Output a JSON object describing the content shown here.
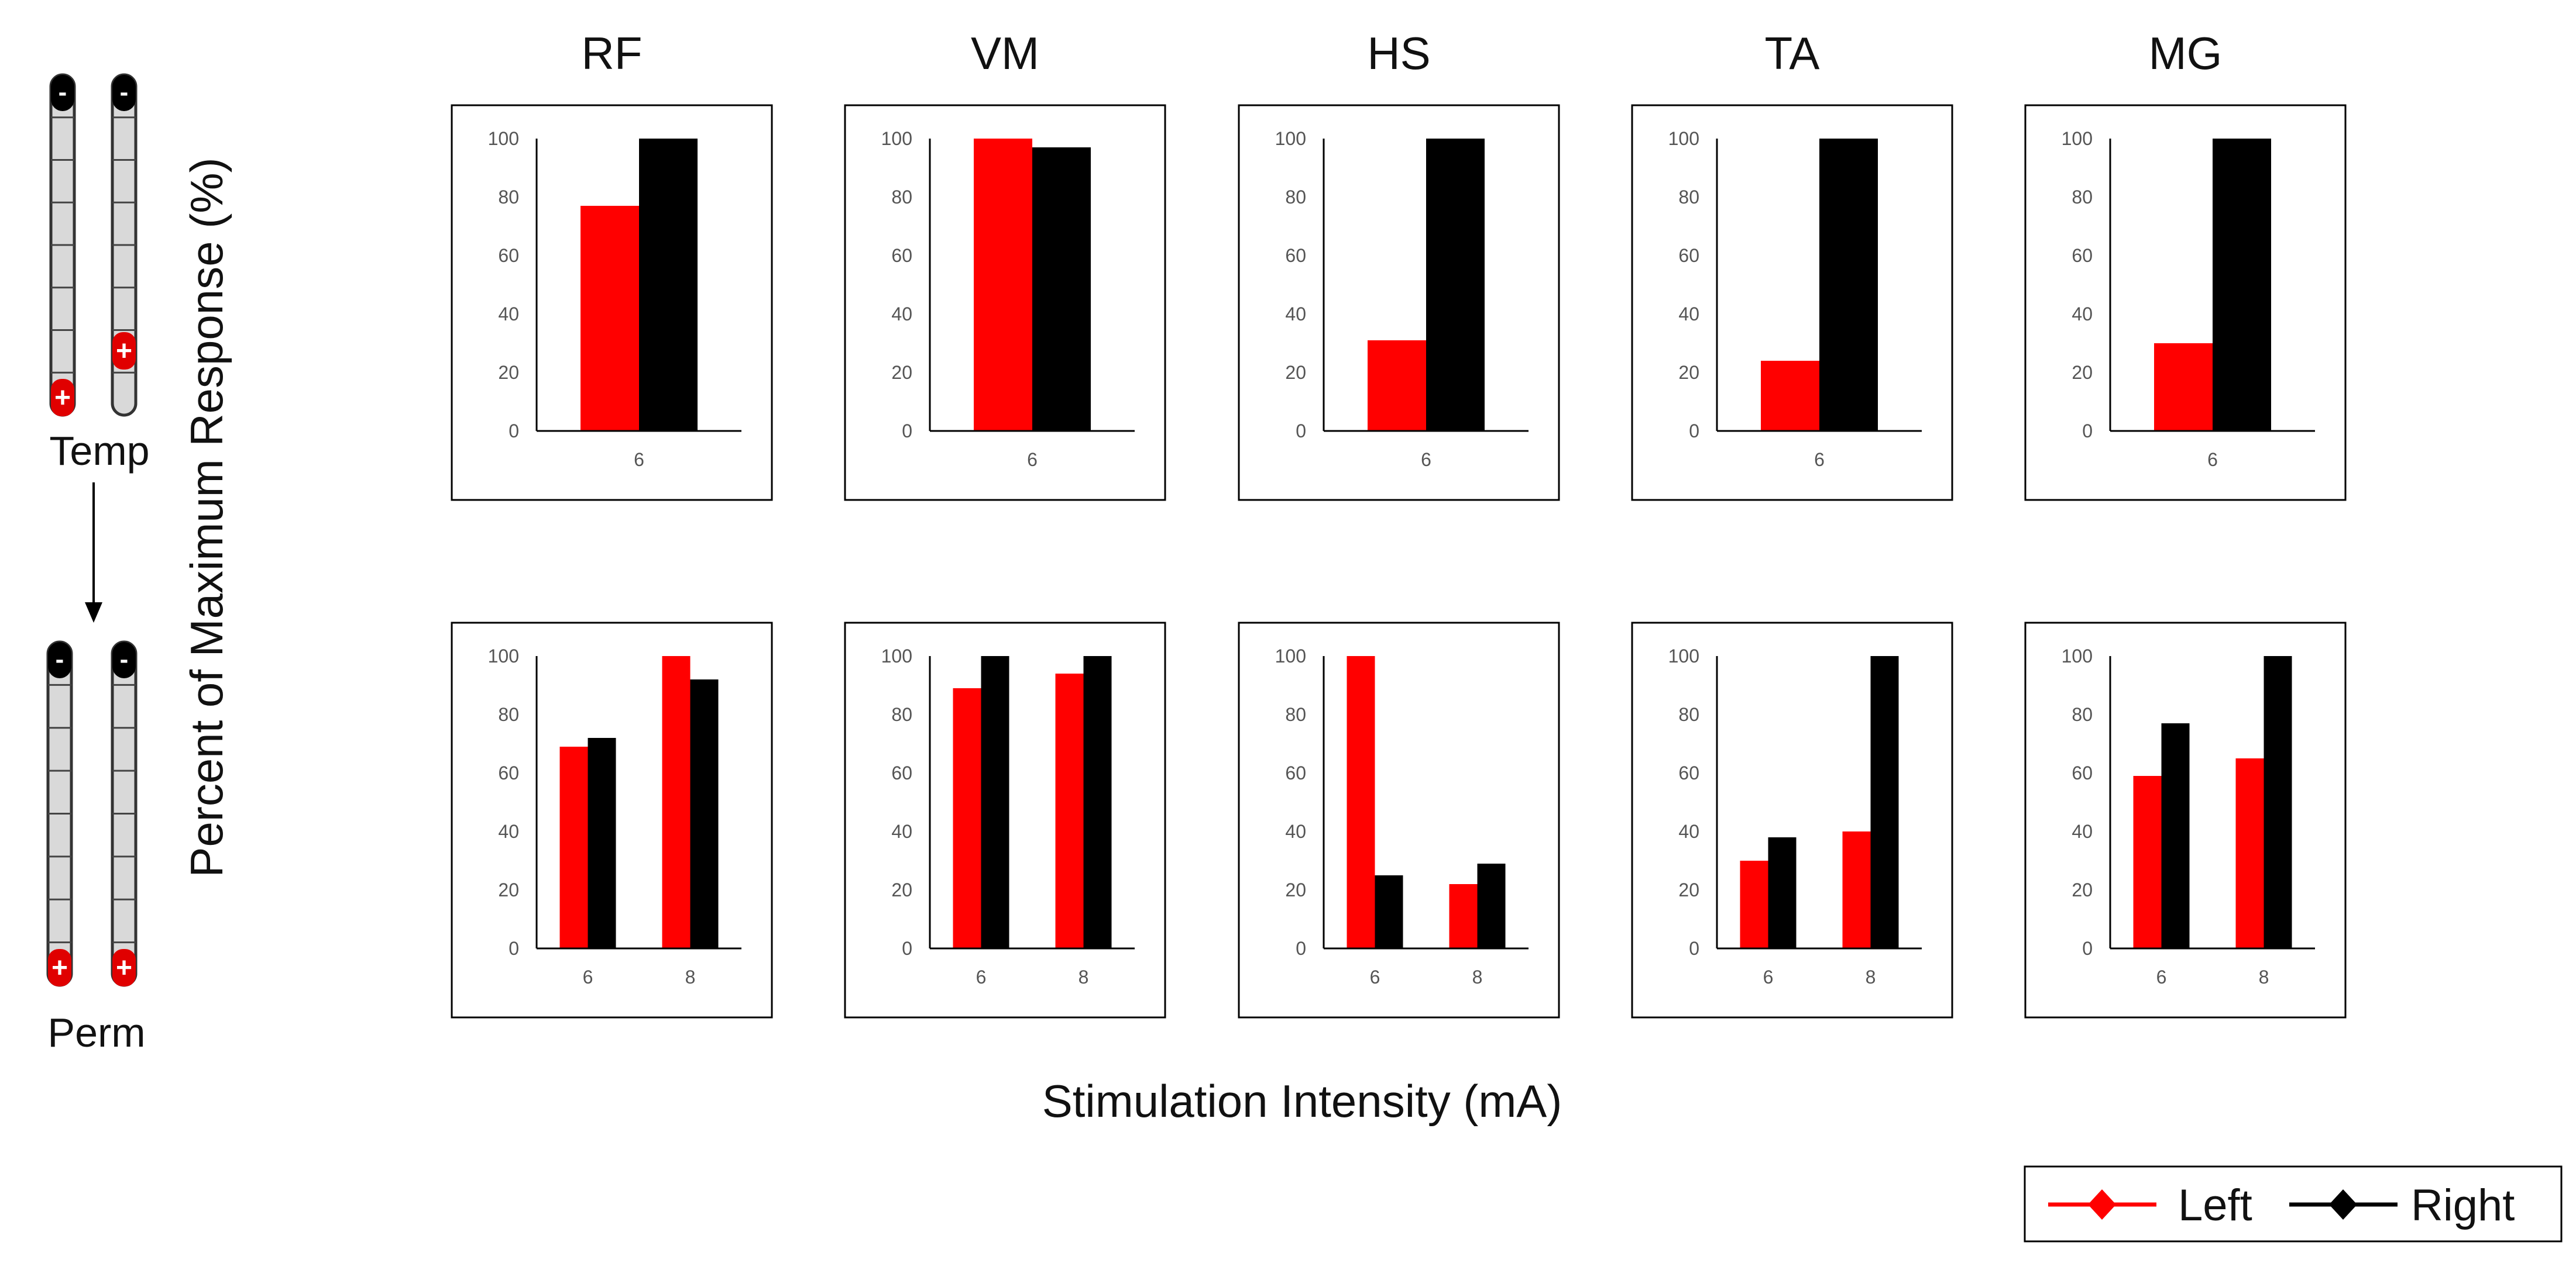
{
  "figure": {
    "ylabel": "Percent of Maximum Response (%)",
    "xlabel": "Stimulation Intensity (mA)",
    "muscles": [
      "RF",
      "VM",
      "HS",
      "TA",
      "MG"
    ],
    "rows": [
      "Temp",
      "Perm"
    ],
    "transition_arrow": "Temp to Perm",
    "electrode_marks": {
      "anode": "+",
      "cathode": "-"
    },
    "legend": [
      {
        "label": "Left",
        "color": "#ff0000"
      },
      {
        "label": "Right",
        "color": "#000000"
      }
    ]
  },
  "chart_data": [
    {
      "type": "bar",
      "row": "Temp",
      "muscle": "RF",
      "categories": [
        "6"
      ],
      "ylim": [
        0,
        100
      ],
      "yticks": [
        0,
        20,
        40,
        60,
        80,
        100
      ],
      "series": [
        {
          "name": "Left",
          "color": "#ff0000",
          "values": [
            77
          ]
        },
        {
          "name": "Right",
          "color": "#000000",
          "values": [
            100
          ]
        }
      ]
    },
    {
      "type": "bar",
      "row": "Temp",
      "muscle": "VM",
      "categories": [
        "6"
      ],
      "ylim": [
        0,
        100
      ],
      "yticks": [
        0,
        20,
        40,
        60,
        80,
        100
      ],
      "series": [
        {
          "name": "Left",
          "color": "#ff0000",
          "values": [
            100
          ]
        },
        {
          "name": "Right",
          "color": "#000000",
          "values": [
            97
          ]
        }
      ]
    },
    {
      "type": "bar",
      "row": "Temp",
      "muscle": "HS",
      "categories": [
        "6"
      ],
      "ylim": [
        0,
        100
      ],
      "yticks": [
        0,
        20,
        40,
        60,
        80,
        100
      ],
      "series": [
        {
          "name": "Left",
          "color": "#ff0000",
          "values": [
            31
          ]
        },
        {
          "name": "Right",
          "color": "#000000",
          "values": [
            100
          ]
        }
      ]
    },
    {
      "type": "bar",
      "row": "Temp",
      "muscle": "TA",
      "categories": [
        "6"
      ],
      "ylim": [
        0,
        100
      ],
      "yticks": [
        0,
        20,
        40,
        60,
        80,
        100
      ],
      "series": [
        {
          "name": "Left",
          "color": "#ff0000",
          "values": [
            24
          ]
        },
        {
          "name": "Right",
          "color": "#000000",
          "values": [
            100
          ]
        }
      ]
    },
    {
      "type": "bar",
      "row": "Temp",
      "muscle": "MG",
      "categories": [
        "6"
      ],
      "ylim": [
        0,
        100
      ],
      "yticks": [
        0,
        20,
        40,
        60,
        80,
        100
      ],
      "series": [
        {
          "name": "Left",
          "color": "#ff0000",
          "values": [
            30
          ]
        },
        {
          "name": "Right",
          "color": "#000000",
          "values": [
            100
          ]
        }
      ]
    },
    {
      "type": "bar",
      "row": "Perm",
      "muscle": "RF",
      "categories": [
        "6",
        "8"
      ],
      "ylim": [
        0,
        100
      ],
      "yticks": [
        0,
        20,
        40,
        60,
        80,
        100
      ],
      "series": [
        {
          "name": "Left",
          "color": "#ff0000",
          "values": [
            69,
            100
          ]
        },
        {
          "name": "Right",
          "color": "#000000",
          "values": [
            72,
            92
          ]
        }
      ]
    },
    {
      "type": "bar",
      "row": "Perm",
      "muscle": "VM",
      "categories": [
        "6",
        "8"
      ],
      "ylim": [
        0,
        100
      ],
      "yticks": [
        0,
        20,
        40,
        60,
        80,
        100
      ],
      "series": [
        {
          "name": "Left",
          "color": "#ff0000",
          "values": [
            89,
            94
          ]
        },
        {
          "name": "Right",
          "color": "#000000",
          "values": [
            100,
            100
          ]
        }
      ]
    },
    {
      "type": "bar",
      "row": "Perm",
      "muscle": "HS",
      "categories": [
        "6",
        "8"
      ],
      "ylim": [
        0,
        100
      ],
      "yticks": [
        0,
        20,
        40,
        60,
        80,
        100
      ],
      "series": [
        {
          "name": "Left",
          "color": "#ff0000",
          "values": [
            100,
            22
          ]
        },
        {
          "name": "Right",
          "color": "#000000",
          "values": [
            25,
            29
          ]
        }
      ]
    },
    {
      "type": "bar",
      "row": "Perm",
      "muscle": "TA",
      "categories": [
        "6",
        "8"
      ],
      "ylim": [
        0,
        100
      ],
      "yticks": [
        0,
        20,
        40,
        60,
        80,
        100
      ],
      "series": [
        {
          "name": "Left",
          "color": "#ff0000",
          "values": [
            30,
            40
          ]
        },
        {
          "name": "Right",
          "color": "#000000",
          "values": [
            38,
            100
          ]
        }
      ]
    },
    {
      "type": "bar",
      "row": "Perm",
      "muscle": "MG",
      "categories": [
        "6",
        "8"
      ],
      "ylim": [
        0,
        100
      ],
      "yticks": [
        0,
        20,
        40,
        60,
        80,
        100
      ],
      "series": [
        {
          "name": "Left",
          "color": "#ff0000",
          "values": [
            59,
            65
          ]
        },
        {
          "name": "Right",
          "color": "#000000",
          "values": [
            77,
            100
          ]
        }
      ]
    }
  ]
}
